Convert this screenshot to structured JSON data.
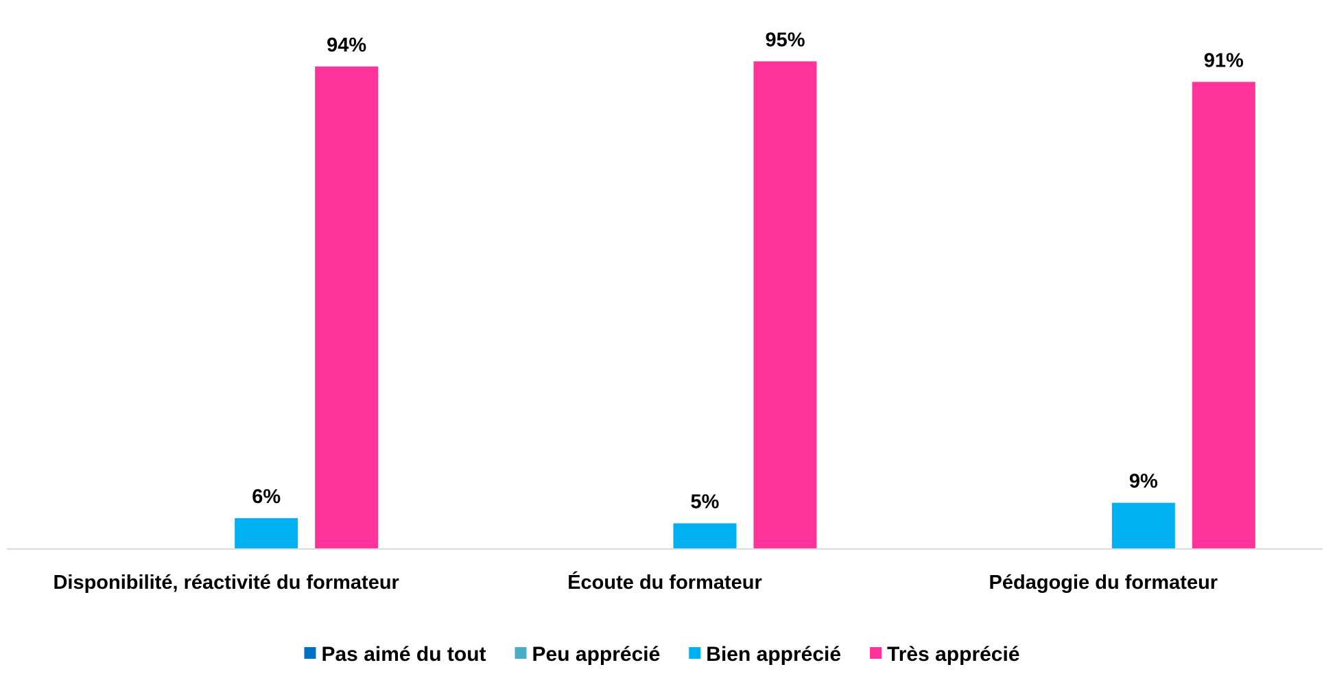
{
  "chart_data": {
    "type": "bar",
    "title": "",
    "xlabel": "",
    "ylabel": "",
    "ylim": [
      0,
      100
    ],
    "grid": false,
    "legend_position": "bottom",
    "categories": [
      "Disponibilité, réactivité du formateur",
      "Écoute du formateur",
      "Pédagogie du formateur"
    ],
    "series": [
      {
        "name": "Pas aimé du tout",
        "color": "#0070C0",
        "values": [
          0,
          0,
          0
        ],
        "labels": [
          "",
          "",
          ""
        ]
      },
      {
        "name": "Peu apprécié",
        "color": "#4BACC6",
        "values": [
          0,
          0,
          0
        ],
        "labels": [
          "",
          "",
          ""
        ]
      },
      {
        "name": "Bien apprécié",
        "color": "#00B0F0",
        "values": [
          6,
          5,
          9
        ],
        "labels": [
          "6%",
          "5%",
          "9%"
        ]
      },
      {
        "name": "Très apprécié",
        "color": "#FF3399",
        "values": [
          94,
          95,
          91
        ],
        "labels": [
          "94%",
          "95%",
          "91%"
        ]
      }
    ]
  }
}
